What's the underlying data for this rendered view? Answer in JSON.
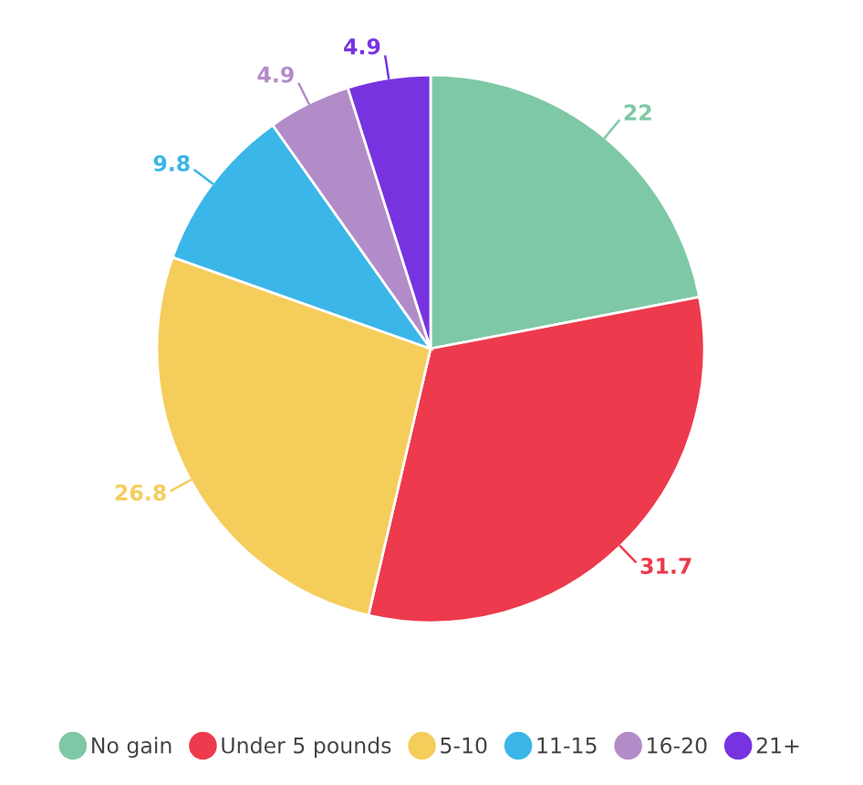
{
  "chart_data": {
    "type": "pie",
    "categories": [
      "No gain",
      "Under 5 pounds",
      "5-10",
      "11-15",
      "16-20",
      "21+"
    ],
    "values": [
      22,
      31.7,
      26.8,
      9.8,
      4.9,
      4.9
    ],
    "colors": [
      "#7ec8a6",
      "#ed3a4c",
      "#f5cd5b",
      "#3bb6e8",
      "#b28cc8",
      "#7733e0"
    ],
    "data_labels": true,
    "legend": "bottom"
  }
}
